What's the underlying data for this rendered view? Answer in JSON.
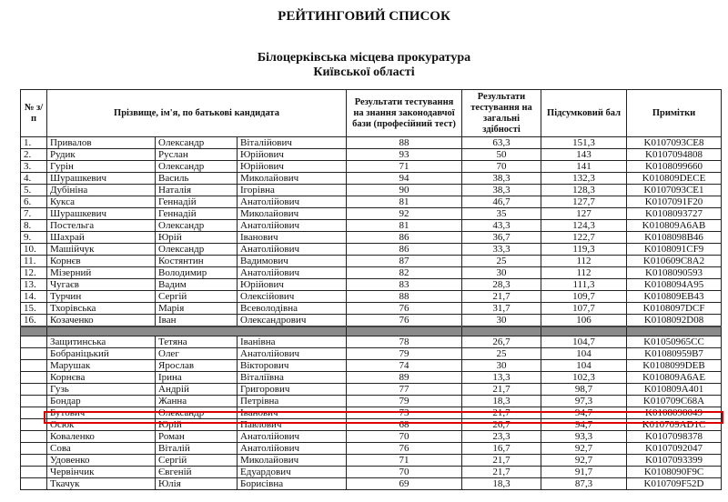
{
  "title": "РЕЙТИНГОВИЙ СПИСОК",
  "subtitle_line1": "Білоцерківська місцева прокуратура",
  "subtitle_line2": "Київської області",
  "highlight_color": "#d00000",
  "headers": {
    "num": "№ з/п",
    "name": "Прізвище, ім'я, по батькові кандидата",
    "test_law": "Результати тестування на знання законодавчої бази (професійний тест)",
    "test_general": "Результати тестування на загальні здібності",
    "total": "Підсумковий бал",
    "notes": "Примітки"
  },
  "rows_top": [
    [
      "1.",
      "Привалов",
      "Олександр",
      "Віталійович",
      "88",
      "63,3",
      "151,3",
      "K0107093CE8"
    ],
    [
      "2.",
      "Рудик",
      "Руслан",
      "Юрійович",
      "93",
      "50",
      "143",
      "K0107094808"
    ],
    [
      "3.",
      "Гурін",
      "Олександр",
      "Юрійович",
      "71",
      "70",
      "141",
      "K0108099660"
    ],
    [
      "4.",
      "Шурашкевич",
      "Василь",
      "Миколайович",
      "94",
      "38,3",
      "132,3",
      "K010809DECE"
    ],
    [
      "5.",
      "Дубініна",
      "Наталія",
      "Ігорівна",
      "90",
      "38,3",
      "128,3",
      "K0107093CE1"
    ],
    [
      "6.",
      "Кукса",
      "Геннадій",
      "Анатолійович",
      "81",
      "46,7",
      "127,7",
      "K0107091F20"
    ],
    [
      "7.",
      "Шурашкевич",
      "Геннадій",
      "Миколайович",
      "92",
      "35",
      "127",
      "K0108093727"
    ],
    [
      "8.",
      "Постельга",
      "Олександр",
      "Анатолійович",
      "81",
      "43,3",
      "124,3",
      "K010809A6AB"
    ],
    [
      "9.",
      "Шахрай",
      "Юрій",
      "Іванович",
      "86",
      "36,7",
      "122,7",
      "K0108098B46"
    ],
    [
      "10.",
      "Машійчук",
      "Олександр",
      "Анатолійович",
      "86",
      "33,3",
      "119,3",
      "K0108091CF9"
    ],
    [
      "11.",
      "Корнєв",
      "Костянтин",
      "Вадимович",
      "87",
      "25",
      "112",
      "K010609C8A2"
    ],
    [
      "12.",
      "Мізерний",
      "Володимир",
      "Анатолійович",
      "82",
      "30",
      "112",
      "K0108090593"
    ],
    [
      "13.",
      "Чугаєв",
      "Вадим",
      "Юрійович",
      "83",
      "28,3",
      "111,3",
      "K0108094A95"
    ],
    [
      "14.",
      "Турчин",
      "Сергій",
      "Олексійович",
      "88",
      "21,7",
      "109,7",
      "K010809EB43"
    ],
    [
      "15.",
      "Тхорівська",
      "Марія",
      "Всеволодівна",
      "76",
      "31,7",
      "107,7",
      "K0108097DCF"
    ],
    [
      "16.",
      "Козаченко",
      "Іван",
      "Олександрович",
      "76",
      "30",
      "106",
      "K0108092D08"
    ]
  ],
  "rows_bottom": [
    [
      "",
      "Защитинська",
      "Тетяна",
      "Іванівна",
      "78",
      "26,7",
      "104,7",
      "K01050965CC"
    ],
    [
      "",
      "Бобраніцький",
      "Олег",
      "Анатолійович",
      "79",
      "25",
      "104",
      "K01080959B7"
    ],
    [
      "",
      "Марушак",
      "Ярослав",
      "Вікторович",
      "74",
      "30",
      "104",
      "K0108099DEB"
    ],
    [
      "",
      "Корнєва",
      "Ірина",
      "Віталіївна",
      "89",
      "13,3",
      "102,3",
      "K010809A6AE"
    ],
    [
      "",
      "Гузь",
      "Андрій",
      "Григорович",
      "77",
      "21,7",
      "98,7",
      "K010809A401"
    ],
    [
      "",
      "Бондар",
      "Жанна",
      "Петрівна",
      "79",
      "18,3",
      "97,3",
      "K010709C68A"
    ],
    [
      "",
      "Бутович",
      "Олександр",
      "Іванович",
      "73",
      "21,7",
      "94,7",
      "K0108098049"
    ],
    [
      "",
      "Осюк",
      "Юрій",
      "Павлович",
      "68",
      "26,7",
      "94,7",
      "K010709AD1C"
    ],
    [
      "",
      "Коваленко",
      "Роман",
      "Анатолійович",
      "70",
      "23,3",
      "93,3",
      "K0107098378"
    ],
    [
      "",
      "Сова",
      "Віталій",
      "Анатолійович",
      "76",
      "16,7",
      "92,7",
      "K0107092047"
    ],
    [
      "",
      "Удовенко",
      "Сергій",
      "Миколайович",
      "71",
      "21,7",
      "92,7",
      "K0107093399"
    ],
    [
      "",
      "Червінчик",
      "Євгеній",
      "Едуардович",
      "70",
      "21,7",
      "91,7",
      "K0108090F9C"
    ],
    [
      "",
      "Ткачук",
      "Юлія",
      "Борисівна",
      "69",
      "18,3",
      "87,3",
      "K010709F52D"
    ]
  ],
  "highlighted_row": "Бутович"
}
